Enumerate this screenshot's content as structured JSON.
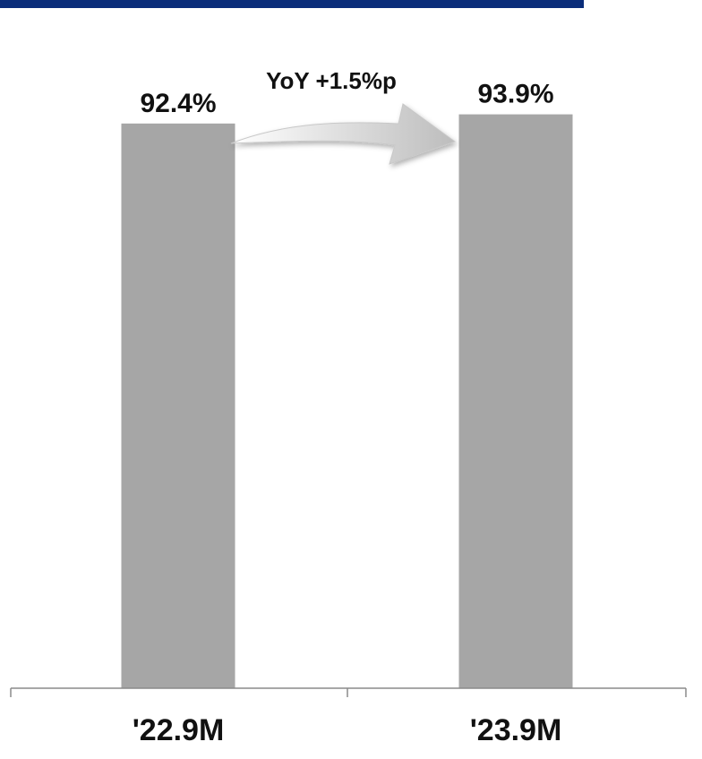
{
  "colors": {
    "top_band": "#0a2d7a",
    "bar": "#a6a6a6",
    "axis": "#8a8a8a"
  },
  "chart_data": {
    "type": "bar",
    "categories": [
      "'22.9M",
      "'23.9M"
    ],
    "values": [
      92.4,
      93.9
    ],
    "value_labels": [
      "92.4%",
      "93.9%"
    ],
    "ylim": [
      0,
      100
    ],
    "grid": false,
    "legend": "none",
    "annotation": {
      "text": "YoY +1.5%p",
      "from_category": "'22.9M",
      "to_category": "'23.9M",
      "icon": "curved-arrow-icon"
    }
  }
}
